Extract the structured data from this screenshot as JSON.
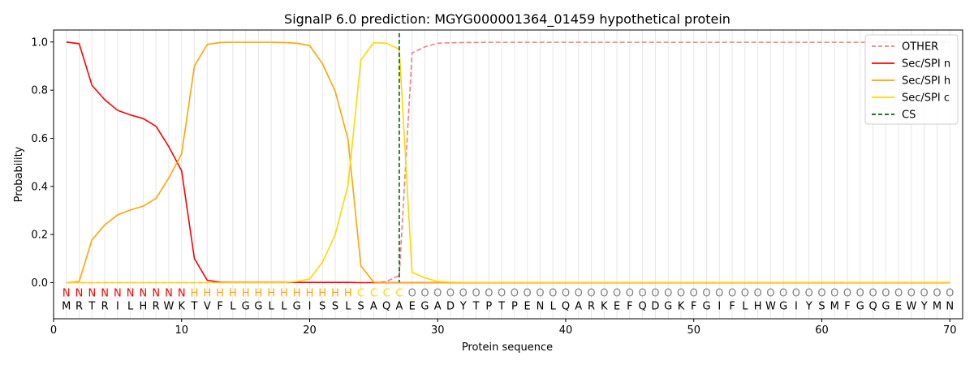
{
  "chart_data": {
    "type": "line",
    "title": "SignalP 6.0 prediction: MGYG000001364_01459 hypothetical protein",
    "xlabel": "Protein sequence",
    "ylabel": "Probability",
    "xlim": [
      0,
      71
    ],
    "ylim": [
      -0.15,
      1.05
    ],
    "xticks": [
      0,
      10,
      20,
      30,
      40,
      50,
      60,
      70
    ],
    "yticks": [
      0.0,
      0.2,
      0.4,
      0.6,
      0.8,
      1.0
    ],
    "ytick_labels": [
      "0.0",
      "0.2",
      "0.4",
      "0.6",
      "0.8",
      "1.0"
    ],
    "legend_position": "top-right",
    "sequence": [
      "M",
      "R",
      "T",
      "R",
      "I",
      "L",
      "H",
      "R",
      "W",
      "K",
      "T",
      "V",
      "F",
      "L",
      "G",
      "G",
      "L",
      "L",
      "G",
      "I",
      "S",
      "S",
      "L",
      "S",
      "A",
      "Q",
      "A",
      "E",
      "G",
      "A",
      "D",
      "Y",
      "T",
      "P",
      "T",
      "P",
      "E",
      "N",
      "L",
      "Q",
      "A",
      "R",
      "K",
      "E",
      "F",
      "Q",
      "D",
      "G",
      "K",
      "F",
      "G",
      "I",
      "F",
      "L",
      "H",
      "W",
      "G",
      "I",
      "Y",
      "S",
      "M",
      "F",
      "G",
      "Q",
      "G",
      "E",
      "W",
      "Y",
      "M",
      "N"
    ],
    "labels": [
      "N",
      "N",
      "N",
      "N",
      "N",
      "N",
      "N",
      "N",
      "N",
      "N",
      "H",
      "H",
      "H",
      "H",
      "H",
      "H",
      "H",
      "H",
      "H",
      "H",
      "H",
      "H",
      "H",
      "C",
      "C",
      "C",
      "C",
      "O",
      "O",
      "O",
      "O",
      "O",
      "O",
      "O",
      "O",
      "O",
      "O",
      "O",
      "O",
      "O",
      "O",
      "O",
      "O",
      "O",
      "O",
      "O",
      "O",
      "O",
      "O",
      "O",
      "O",
      "O",
      "O",
      "O",
      "O",
      "O",
      "O",
      "O",
      "O",
      "O",
      "O",
      "O",
      "O",
      "O",
      "O",
      "O",
      "O",
      "O",
      "O",
      "O"
    ],
    "label_colors": {
      "N": "#ff0000",
      "H": "#ffa500",
      "C": "#ffd700",
      "O": "#808080"
    },
    "cs_position": 27,
    "series": [
      {
        "name": "OTHER",
        "color": "#f08080",
        "dashed": true,
        "values": [
          0,
          0,
          0,
          0,
          0,
          0,
          0,
          0,
          0,
          0,
          0,
          0,
          0,
          0,
          0,
          0,
          0,
          0,
          0,
          0,
          0,
          0,
          0,
          0,
          0,
          0.005,
          0.03,
          0.955,
          0.98,
          0.995,
          0.997,
          0.998,
          0.998,
          0.999,
          0.999,
          0.999,
          0.999,
          0.999,
          0.999,
          0.999,
          0.999,
          0.999,
          0.999,
          0.999,
          0.999,
          0.999,
          0.999,
          0.999,
          0.999,
          0.999,
          0.999,
          0.999,
          0.999,
          0.999,
          0.999,
          0.999,
          0.999,
          0.999,
          0.999,
          0.999,
          0.999,
          0.999,
          0.999,
          0.999,
          0.999,
          0.999,
          0.999,
          0.999,
          0.999,
          0.999
        ]
      },
      {
        "name": "Sec/SPI n",
        "color": "#ff0000",
        "dashed": false,
        "values": [
          1.0,
          0.993,
          0.82,
          0.76,
          0.716,
          0.697,
          0.682,
          0.65,
          0.565,
          0.465,
          0.1,
          0.01,
          0.002,
          0.001,
          0.001,
          0.001,
          0.001,
          0.001,
          0.001,
          0.001,
          0.001,
          0.001,
          0.001,
          0,
          0,
          0,
          0,
          0,
          0,
          0,
          0,
          0,
          0,
          0,
          0,
          0,
          0,
          0,
          0,
          0,
          0,
          0,
          0,
          0,
          0,
          0,
          0,
          0,
          0,
          0,
          0,
          0,
          0,
          0,
          0,
          0,
          0,
          0,
          0,
          0,
          0,
          0,
          0,
          0,
          0,
          0,
          0,
          0,
          0,
          0
        ]
      },
      {
        "name": "Sec/SPI h",
        "color": "#ffa500",
        "dashed": false,
        "values": [
          0,
          0.005,
          0.178,
          0.24,
          0.282,
          0.302,
          0.318,
          0.35,
          0.435,
          0.535,
          0.9,
          0.99,
          0.998,
          0.999,
          0.999,
          0.999,
          0.999,
          0.998,
          0.995,
          0.985,
          0.91,
          0.795,
          0.595,
          0.07,
          0.002,
          0,
          0,
          0,
          0,
          0,
          0,
          0,
          0,
          0,
          0,
          0,
          0,
          0,
          0,
          0,
          0,
          0,
          0,
          0,
          0,
          0,
          0,
          0,
          0,
          0,
          0,
          0,
          0,
          0,
          0,
          0,
          0,
          0,
          0,
          0,
          0,
          0,
          0,
          0,
          0,
          0,
          0,
          0,
          0,
          0
        ]
      },
      {
        "name": "Sec/SPI c",
        "color": "#ffd700",
        "dashed": false,
        "values": [
          0,
          0,
          0,
          0,
          0,
          0,
          0,
          0,
          0,
          0,
          0,
          0,
          0,
          0,
          0,
          0,
          0,
          0,
          0.005,
          0.015,
          0.085,
          0.2,
          0.405,
          0.925,
          0.997,
          0.995,
          0.97,
          0.043,
          0.02,
          0.005,
          0.002,
          0.001,
          0.001,
          0.001,
          0.001,
          0.001,
          0.001,
          0.001,
          0.001,
          0.001,
          0.001,
          0.001,
          0.001,
          0.001,
          0.001,
          0.001,
          0.001,
          0.001,
          0.001,
          0.001,
          0.001,
          0.001,
          0.001,
          0.001,
          0.001,
          0.001,
          0.001,
          0.001,
          0.001,
          0.001,
          0.001,
          0.001,
          0.001,
          0.001,
          0.001,
          0.001,
          0.001,
          0.001,
          0.001,
          0.001
        ]
      }
    ],
    "legend": [
      {
        "label": "OTHER",
        "color": "#f08080",
        "dashed": true
      },
      {
        "label": "Sec/SPI n",
        "color": "#ff0000",
        "dashed": false
      },
      {
        "label": "Sec/SPI h",
        "color": "#ffa500",
        "dashed": false
      },
      {
        "label": "Sec/SPI c",
        "color": "#ffd700",
        "dashed": false
      },
      {
        "label": "CS",
        "color": "#006400",
        "dashed": true
      }
    ]
  }
}
